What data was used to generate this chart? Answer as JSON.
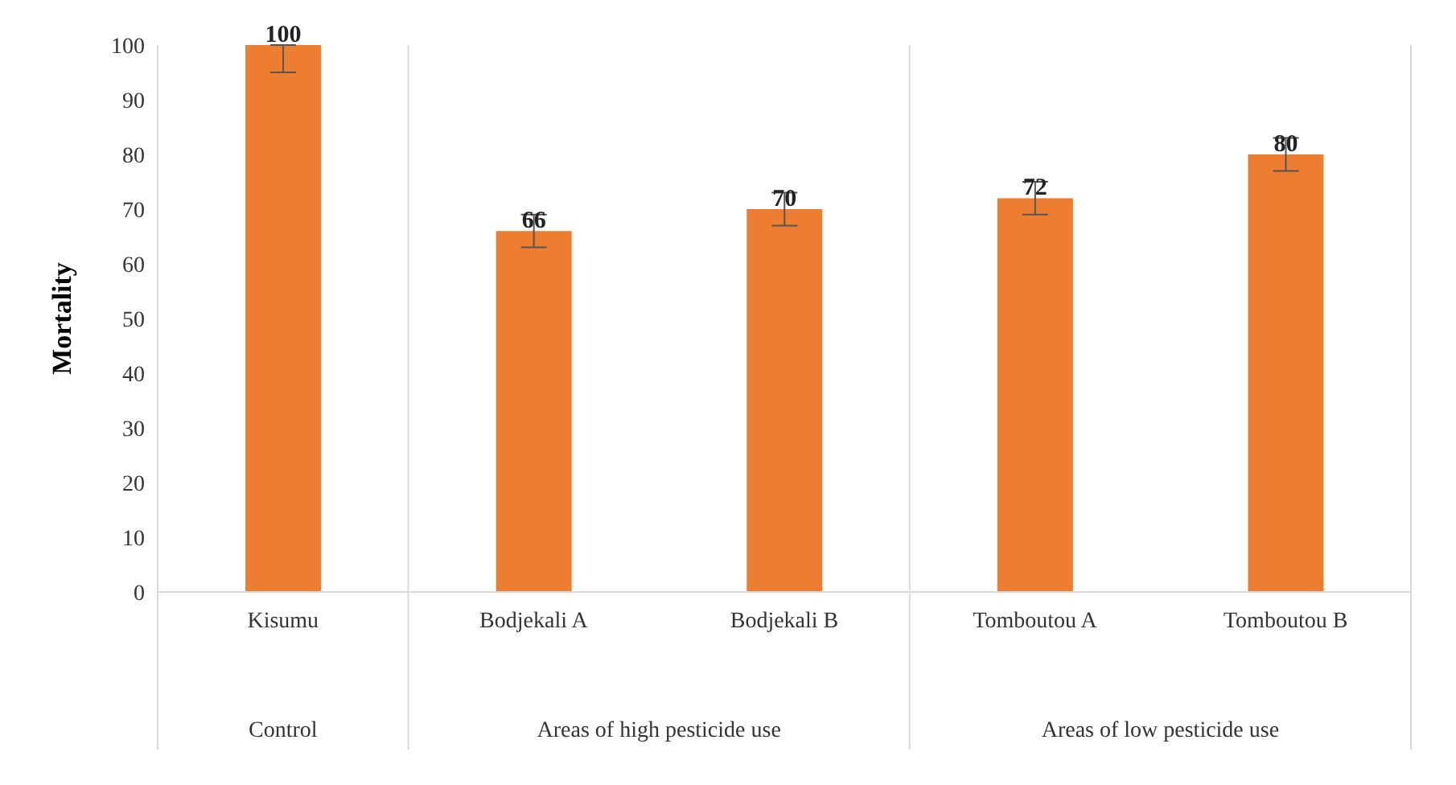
{
  "chart_data": {
    "type": "bar",
    "ylabel": "Mortality",
    "categories": [
      "Kisumu",
      "Bodjekali A",
      "Bodjekali B",
      "Tomboutou A",
      "Tomboutou B"
    ],
    "values": [
      100,
      66,
      70,
      72,
      80
    ],
    "errors": [
      [
        95,
        100
      ],
      3,
      3,
      3,
      3
    ],
    "color": "#ed7d31",
    "ylim": [
      0,
      100
    ],
    "yticks": [
      0,
      10,
      20,
      30,
      40,
      50,
      60,
      70,
      80,
      90,
      100
    ],
    "grid": false,
    "data_labels": true,
    "legend": false,
    "annotations": [
      "Control",
      "Areas of high pesticide use",
      "Areas of low pesticide use"
    ]
  }
}
